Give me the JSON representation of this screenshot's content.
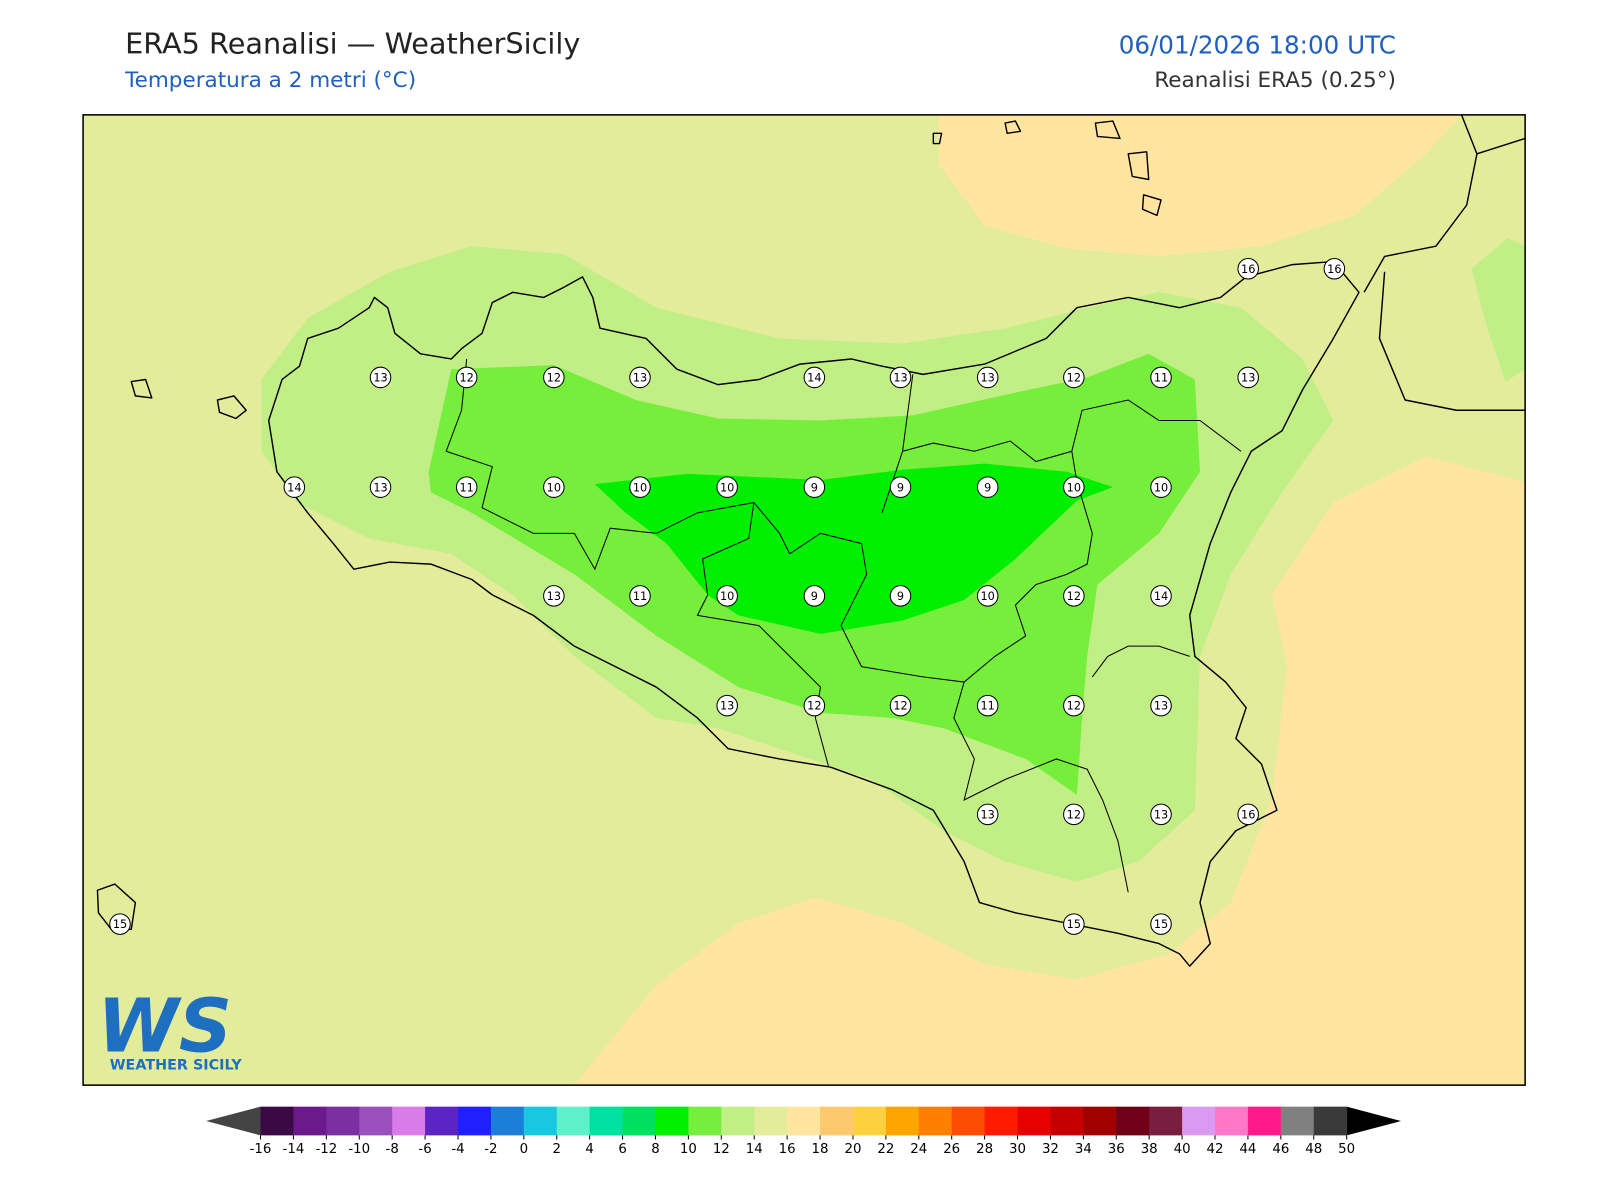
{
  "header": {
    "title": "ERA5 Reanalisi — WeatherSicily",
    "subtitle": "Temperatura a 2 metri (°C)",
    "datetime": "06/01/2026 18:00 UTC",
    "source": "Reanalisi ERA5 (0.25°)"
  },
  "stations": [
    16,
    16,
    13,
    12,
    12,
    13,
    14,
    13,
    13,
    12,
    11,
    13,
    14,
    13,
    11,
    10,
    10,
    10,
    9,
    9,
    9,
    10,
    10,
    13,
    11,
    10,
    9,
    9,
    10,
    12,
    14,
    13,
    12,
    12,
    11,
    12,
    13,
    13,
    12,
    13,
    16,
    15,
    15,
    15
  ],
  "colorbar": {
    "ticks": [
      -16,
      -14,
      -12,
      -10,
      -8,
      -6,
      -4,
      -2,
      0,
      2,
      4,
      6,
      8,
      10,
      12,
      14,
      16,
      18,
      20,
      22,
      24,
      26,
      28,
      30,
      32,
      34,
      36,
      38,
      40,
      42,
      44,
      46,
      48,
      50
    ],
    "colors": [
      "#3b0a45",
      "#6a1a8a",
      "#7b2fa0",
      "#9b4fbd",
      "#d97be8",
      "#5b24c4",
      "#1f1fff",
      "#1b7fd9",
      "#18c7e0",
      "#5ef0c8",
      "#00e0a0",
      "#00e060",
      "#00ee00",
      "#76ee3c",
      "#c2ee86",
      "#e2ec9a",
      "#ffe5a0",
      "#fcc96e",
      "#fdd040",
      "#ffa500",
      "#ff7f00",
      "#ff4d00",
      "#ff1a00",
      "#e60000",
      "#c40000",
      "#a00000",
      "#700018",
      "#7a1e40",
      "#d99bf0",
      "#ff78c8",
      "#ff1a8c",
      "#808080",
      "#3a3a3a"
    ]
  },
  "logo": {
    "mark": "WS",
    "text": "WEATHER SICILY"
  }
}
